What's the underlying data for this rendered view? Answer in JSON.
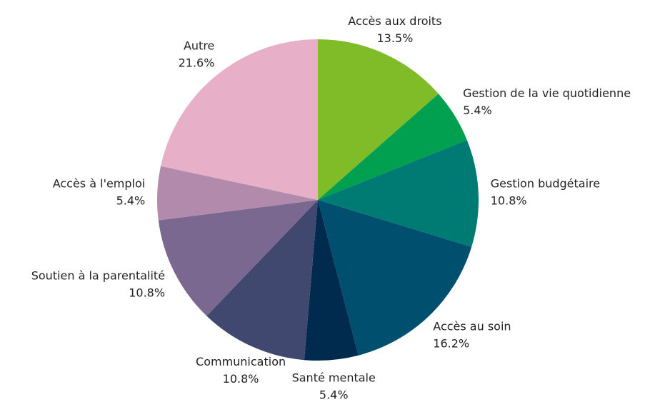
{
  "chart_data": {
    "type": "pie",
    "categories": [
      "Accès aux droits",
      "Gestion de la vie quotidienne",
      "Gestion budgétaire",
      "Accès au soin",
      "Santé mentale",
      "Communication",
      "Soutien à la parentalité",
      "Accès à l'emploi",
      "Autre"
    ],
    "values": [
      13.5,
      5.4,
      10.8,
      16.2,
      5.4,
      10.8,
      10.8,
      5.4,
      21.6
    ],
    "value_labels": [
      "13.5%",
      "5.4%",
      "10.8%",
      "16.2%",
      "5.4%",
      "10.8%",
      "10.8%",
      "5.4%",
      "21.6%"
    ],
    "colors": [
      "#7fbc28",
      "#00a050",
      "#007b74",
      "#004f6e",
      "#002a4e",
      "#404870",
      "#7b6890",
      "#b28aac",
      "#e8afc8"
    ]
  }
}
